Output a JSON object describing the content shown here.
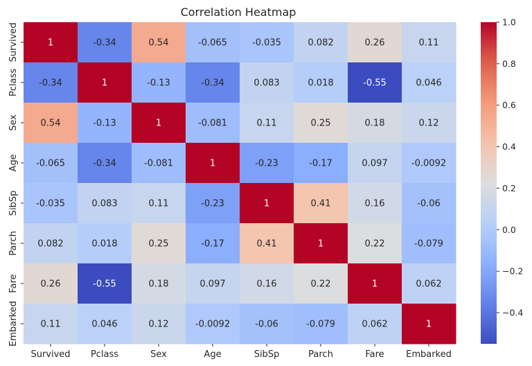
{
  "chart_data": {
    "type": "heatmap",
    "title": "Correlation Heatmap",
    "xlabel": "",
    "ylabel": "",
    "x_categories": [
      "Survived",
      "Pclass",
      "Sex",
      "Age",
      "SibSp",
      "Parch",
      "Fare",
      "Embarked"
    ],
    "y_categories": [
      "Survived",
      "Pclass",
      "Sex",
      "Age",
      "SibSp",
      "Parch",
      "Fare",
      "Embarked"
    ],
    "values": [
      [
        1,
        -0.34,
        0.54,
        -0.065,
        -0.035,
        0.082,
        0.26,
        0.11
      ],
      [
        -0.34,
        1,
        -0.13,
        -0.34,
        0.083,
        0.018,
        -0.55,
        0.046
      ],
      [
        0.54,
        -0.13,
        1,
        -0.081,
        0.11,
        0.25,
        0.18,
        0.12
      ],
      [
        -0.065,
        -0.34,
        -0.081,
        1,
        -0.23,
        -0.17,
        0.097,
        -0.0092
      ],
      [
        -0.035,
        0.083,
        0.11,
        -0.23,
        1,
        0.41,
        0.16,
        -0.06
      ],
      [
        0.082,
        0.018,
        0.25,
        -0.17,
        0.41,
        1,
        0.22,
        -0.079
      ],
      [
        0.26,
        -0.55,
        0.18,
        0.097,
        0.16,
        0.22,
        1,
        0.062
      ],
      [
        0.11,
        0.046,
        0.12,
        -0.0092,
        -0.06,
        -0.079,
        0.062,
        1
      ]
    ],
    "annotation_labels": [
      [
        "1",
        "-0.34",
        "0.54",
        "-0.065",
        "-0.035",
        "0.082",
        "0.26",
        "0.11"
      ],
      [
        "-0.34",
        "1",
        "-0.13",
        "-0.34",
        "0.083",
        "0.018",
        "-0.55",
        "0.046"
      ],
      [
        "0.54",
        "-0.13",
        "1",
        "-0.081",
        "0.11",
        "0.25",
        "0.18",
        "0.12"
      ],
      [
        "-0.065",
        "-0.34",
        "-0.081",
        "1",
        "-0.23",
        "-0.17",
        "0.097",
        "-0.0092"
      ],
      [
        "-0.035",
        "0.083",
        "0.11",
        "-0.23",
        "1",
        "0.41",
        "0.16",
        "-0.06"
      ],
      [
        "0.082",
        "0.018",
        "0.25",
        "-0.17",
        "0.41",
        "1",
        "0.22",
        "-0.079"
      ],
      [
        "0.26",
        "-0.55",
        "0.18",
        "0.097",
        "0.16",
        "0.22",
        "1",
        "0.062"
      ],
      [
        "0.11",
        "0.046",
        "0.12",
        "-0.0092",
        "-0.06",
        "-0.079",
        "0.062",
        "1"
      ]
    ],
    "colormap": "coolwarm",
    "colorbar": {
      "range": [
        -0.55,
        1
      ],
      "ticks": [
        1.0,
        0.8,
        0.6,
        0.4,
        0.2,
        0.0,
        -0.2,
        -0.4
      ],
      "tick_labels": [
        "1.0",
        "0.8",
        "0.6",
        "0.4",
        "0.2",
        "0.0",
        "−0.2",
        "−0.4"
      ]
    }
  }
}
